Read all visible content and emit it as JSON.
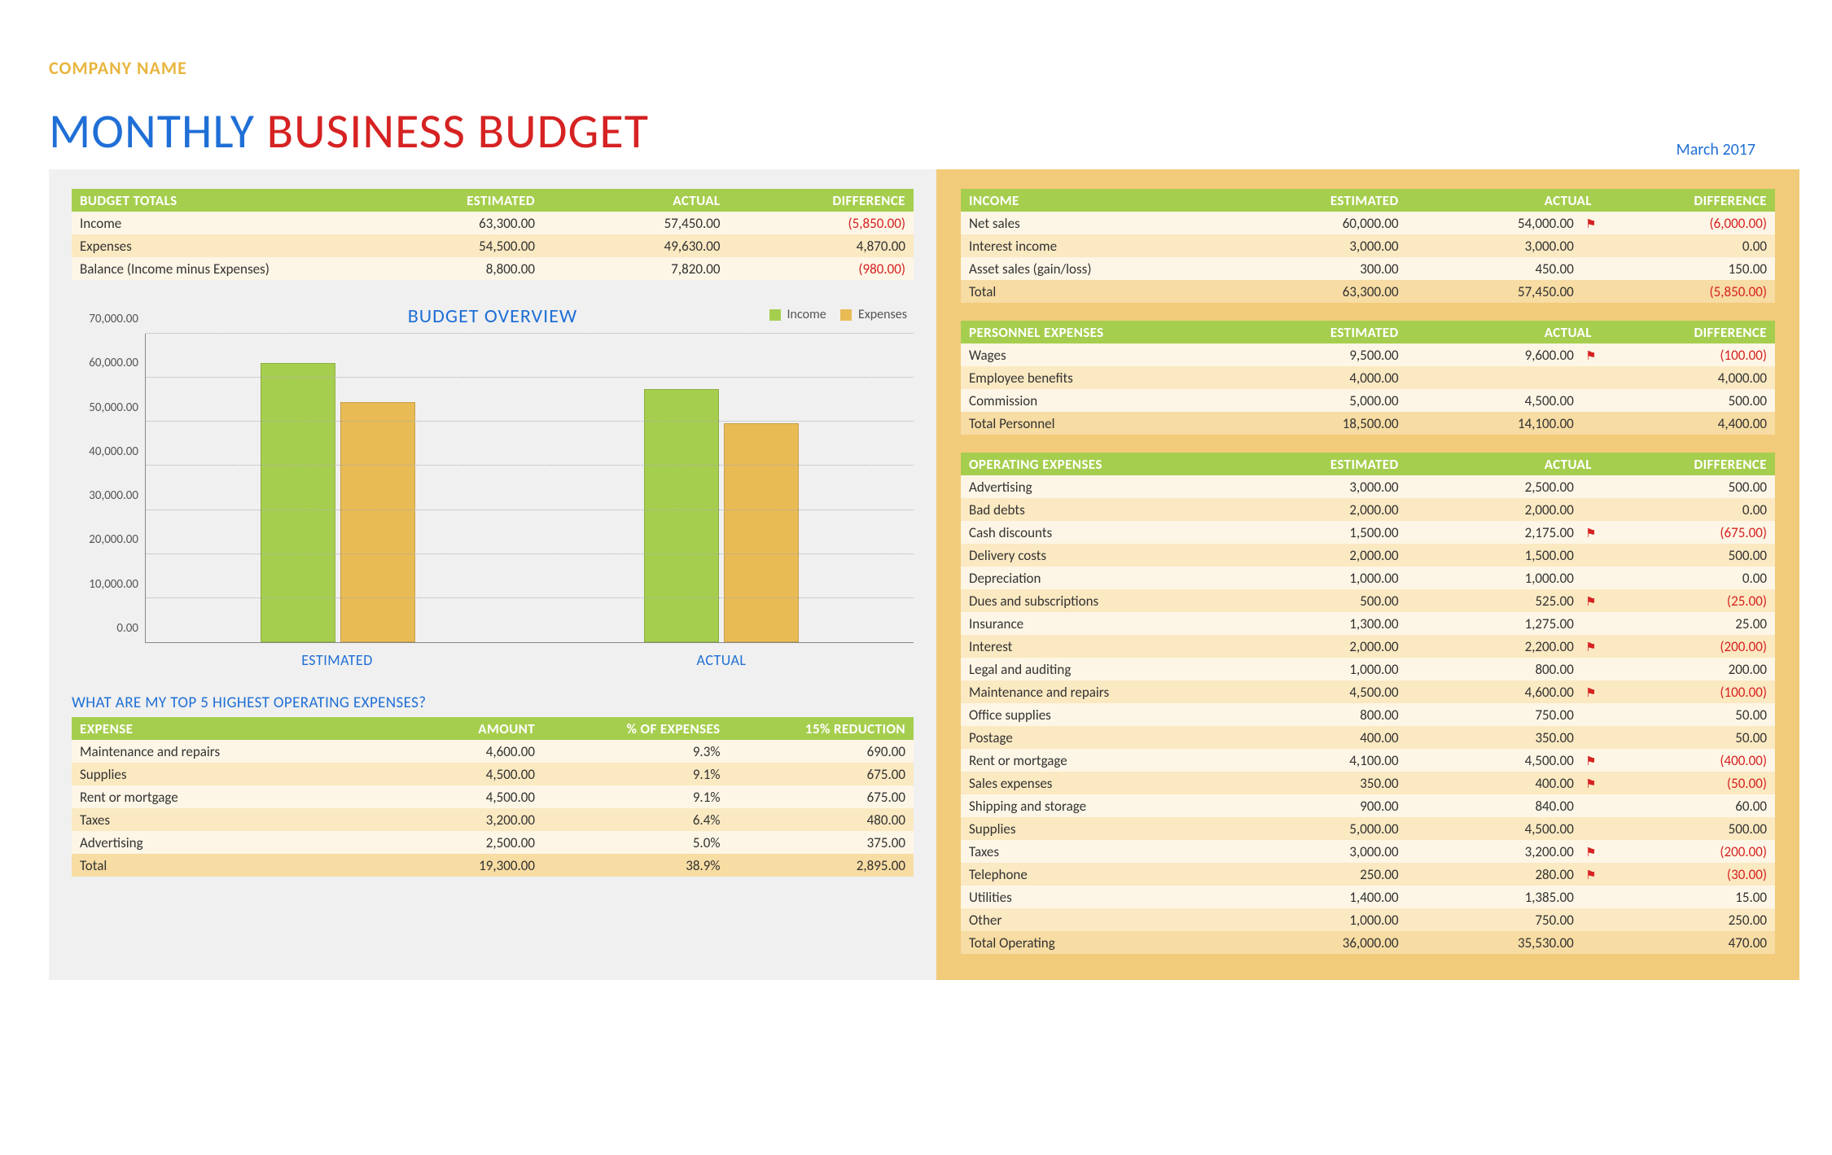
{
  "header": {
    "company": "COMPANY NAME",
    "title1": "MONTHLY",
    "title2": "BUSINESS BUDGET",
    "date": "March 2017"
  },
  "palette": {
    "header_bg": "#a6ce4e",
    "row0": "#fdf6e6",
    "row1": "#fbe9c2",
    "row_total": "#f7dca3",
    "income_bar": "#a6ce4e",
    "expense_bar": "#e9bb55",
    "blue": "#1f6fd6",
    "red": "#d62222"
  },
  "budget_totals": {
    "title": "BUDGET TOTALS",
    "columns": [
      "ESTIMATED",
      "ACTUAL",
      "DIFFERENCE"
    ],
    "rows": [
      {
        "label": "Income",
        "est": "63,300.00",
        "act": "57,450.00",
        "diff": "(5,850.00)",
        "neg": true
      },
      {
        "label": "Expenses",
        "est": "54,500.00",
        "act": "49,630.00",
        "diff": "4,870.00",
        "neg": false
      },
      {
        "label": "Balance (Income minus Expenses)",
        "est": "8,800.00",
        "act": "7,820.00",
        "diff": "(980.00)",
        "neg": true
      }
    ]
  },
  "chart": {
    "title": "BUDGET OVERVIEW",
    "legend": {
      "income": "Income",
      "expenses": "Expenses"
    },
    "ylim": [
      0,
      70000
    ],
    "yticks": [
      "0.00",
      "10,000.00",
      "20,000.00",
      "30,000.00",
      "40,000.00",
      "50,000.00",
      "60,000.00",
      "70,000.00"
    ],
    "categories": [
      "ESTIMATED",
      "ACTUAL"
    ],
    "series": {
      "income": [
        63300,
        57450
      ],
      "expenses": [
        54500,
        49630
      ]
    },
    "income_color": "#a6ce4e",
    "expense_color": "#e9bb55",
    "grid_color": "#aaaaaa"
  },
  "top5": {
    "heading": "WHAT ARE MY TOP 5 HIGHEST OPERATING EXPENSES?",
    "columns": [
      "EXPENSE",
      "AMOUNT",
      "% OF EXPENSES",
      "15% REDUCTION"
    ],
    "rows": [
      {
        "label": "Maintenance and repairs",
        "amount": "4,600.00",
        "pct": "9.3%",
        "red": "690.00"
      },
      {
        "label": "Supplies",
        "amount": "4,500.00",
        "pct": "9.1%",
        "red": "675.00"
      },
      {
        "label": "Rent or mortgage",
        "amount": "4,500.00",
        "pct": "9.1%",
        "red": "675.00"
      },
      {
        "label": "Taxes",
        "amount": "3,200.00",
        "pct": "6.4%",
        "red": "480.00"
      },
      {
        "label": "Advertising",
        "amount": "2,500.00",
        "pct": "5.0%",
        "red": "375.00"
      }
    ],
    "total": {
      "label": "Total",
      "amount": "19,300.00",
      "pct": "38.9%",
      "red": "2,895.00"
    }
  },
  "income": {
    "title": "INCOME",
    "columns": [
      "ESTIMATED",
      "ACTUAL",
      "DIFFERENCE"
    ],
    "rows": [
      {
        "label": "Net sales",
        "est": "60,000.00",
        "act": "54,000.00",
        "diff": "(6,000.00)",
        "neg": true,
        "flag": true
      },
      {
        "label": "Interest income",
        "est": "3,000.00",
        "act": "3,000.00",
        "diff": "0.00",
        "neg": false,
        "flag": false
      },
      {
        "label": "Asset sales (gain/loss)",
        "est": "300.00",
        "act": "450.00",
        "diff": "150.00",
        "neg": false,
        "flag": false
      }
    ],
    "total": {
      "label": "Total",
      "est": "63,300.00",
      "act": "57,450.00",
      "diff": "(5,850.00)",
      "neg": true
    }
  },
  "personnel": {
    "title": "PERSONNEL EXPENSES",
    "columns": [
      "ESTIMATED",
      "ACTUAL",
      "DIFFERENCE"
    ],
    "rows": [
      {
        "label": "Wages",
        "est": "9,500.00",
        "act": "9,600.00",
        "diff": "(100.00)",
        "neg": true,
        "flag": true
      },
      {
        "label": "Employee benefits",
        "est": "4,000.00",
        "act": "",
        "diff": "4,000.00",
        "neg": false,
        "flag": false
      },
      {
        "label": "Commission",
        "est": "5,000.00",
        "act": "4,500.00",
        "diff": "500.00",
        "neg": false,
        "flag": false
      }
    ],
    "total": {
      "label": "Total Personnel",
      "est": "18,500.00",
      "act": "14,100.00",
      "diff": "4,400.00",
      "neg": false
    }
  },
  "operating": {
    "title": "OPERATING EXPENSES",
    "columns": [
      "ESTIMATED",
      "ACTUAL",
      "DIFFERENCE"
    ],
    "rows": [
      {
        "label": "Advertising",
        "est": "3,000.00",
        "act": "2,500.00",
        "diff": "500.00",
        "neg": false,
        "flag": false
      },
      {
        "label": "Bad debts",
        "est": "2,000.00",
        "act": "2,000.00",
        "diff": "0.00",
        "neg": false,
        "flag": false
      },
      {
        "label": "Cash discounts",
        "est": "1,500.00",
        "act": "2,175.00",
        "diff": "(675.00)",
        "neg": true,
        "flag": true
      },
      {
        "label": "Delivery costs",
        "est": "2,000.00",
        "act": "1,500.00",
        "diff": "500.00",
        "neg": false,
        "flag": false
      },
      {
        "label": "Depreciation",
        "est": "1,000.00",
        "act": "1,000.00",
        "diff": "0.00",
        "neg": false,
        "flag": false
      },
      {
        "label": "Dues and subscriptions",
        "est": "500.00",
        "act": "525.00",
        "diff": "(25.00)",
        "neg": true,
        "flag": true
      },
      {
        "label": "Insurance",
        "est": "1,300.00",
        "act": "1,275.00",
        "diff": "25.00",
        "neg": false,
        "flag": false
      },
      {
        "label": "Interest",
        "est": "2,000.00",
        "act": "2,200.00",
        "diff": "(200.00)",
        "neg": true,
        "flag": true
      },
      {
        "label": "Legal and auditing",
        "est": "1,000.00",
        "act": "800.00",
        "diff": "200.00",
        "neg": false,
        "flag": false
      },
      {
        "label": "Maintenance and repairs",
        "est": "4,500.00",
        "act": "4,600.00",
        "diff": "(100.00)",
        "neg": true,
        "flag": true
      },
      {
        "label": "Office supplies",
        "est": "800.00",
        "act": "750.00",
        "diff": "50.00",
        "neg": false,
        "flag": false
      },
      {
        "label": "Postage",
        "est": "400.00",
        "act": "350.00",
        "diff": "50.00",
        "neg": false,
        "flag": false
      },
      {
        "label": "Rent or mortgage",
        "est": "4,100.00",
        "act": "4,500.00",
        "diff": "(400.00)",
        "neg": true,
        "flag": true
      },
      {
        "label": "Sales expenses",
        "est": "350.00",
        "act": "400.00",
        "diff": "(50.00)",
        "neg": true,
        "flag": true
      },
      {
        "label": "Shipping and storage",
        "est": "900.00",
        "act": "840.00",
        "diff": "60.00",
        "neg": false,
        "flag": false
      },
      {
        "label": "Supplies",
        "est": "5,000.00",
        "act": "4,500.00",
        "diff": "500.00",
        "neg": false,
        "flag": false
      },
      {
        "label": "Taxes",
        "est": "3,000.00",
        "act": "3,200.00",
        "diff": "(200.00)",
        "neg": true,
        "flag": true
      },
      {
        "label": "Telephone",
        "est": "250.00",
        "act": "280.00",
        "diff": "(30.00)",
        "neg": true,
        "flag": true
      },
      {
        "label": "Utilities",
        "est": "1,400.00",
        "act": "1,385.00",
        "diff": "15.00",
        "neg": false,
        "flag": false
      },
      {
        "label": "Other",
        "est": "1,000.00",
        "act": "750.00",
        "diff": "250.00",
        "neg": false,
        "flag": false
      }
    ],
    "total": {
      "label": "Total Operating",
      "est": "36,000.00",
      "act": "35,530.00",
      "diff": "470.00",
      "neg": false
    }
  }
}
